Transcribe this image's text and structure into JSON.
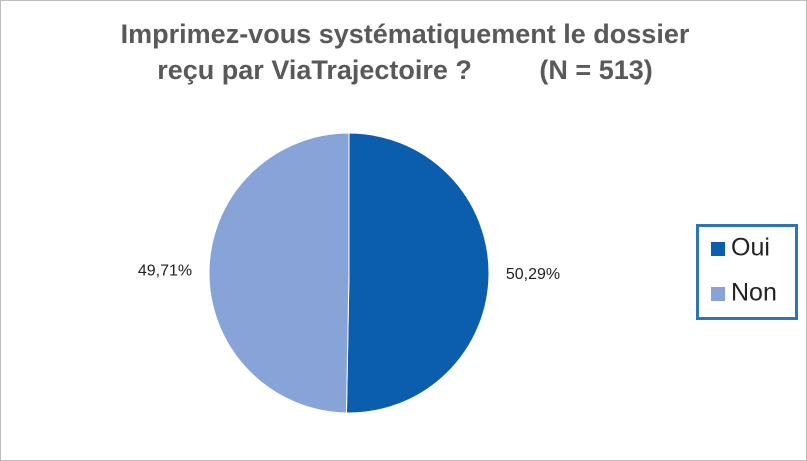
{
  "chart_data": {
    "type": "pie",
    "title": [
      "Imprimez-vous systématiquement le dossier",
      "reçu par ViaTrajectoire ?         (N = 513)"
    ],
    "categories": [
      "Oui",
      "Non"
    ],
    "values": [
      50.29,
      49.71
    ],
    "value_labels": [
      "50,29%",
      "49,71%"
    ],
    "colors": [
      "#0b5dae",
      "#87a3d7"
    ],
    "legend": "right"
  }
}
